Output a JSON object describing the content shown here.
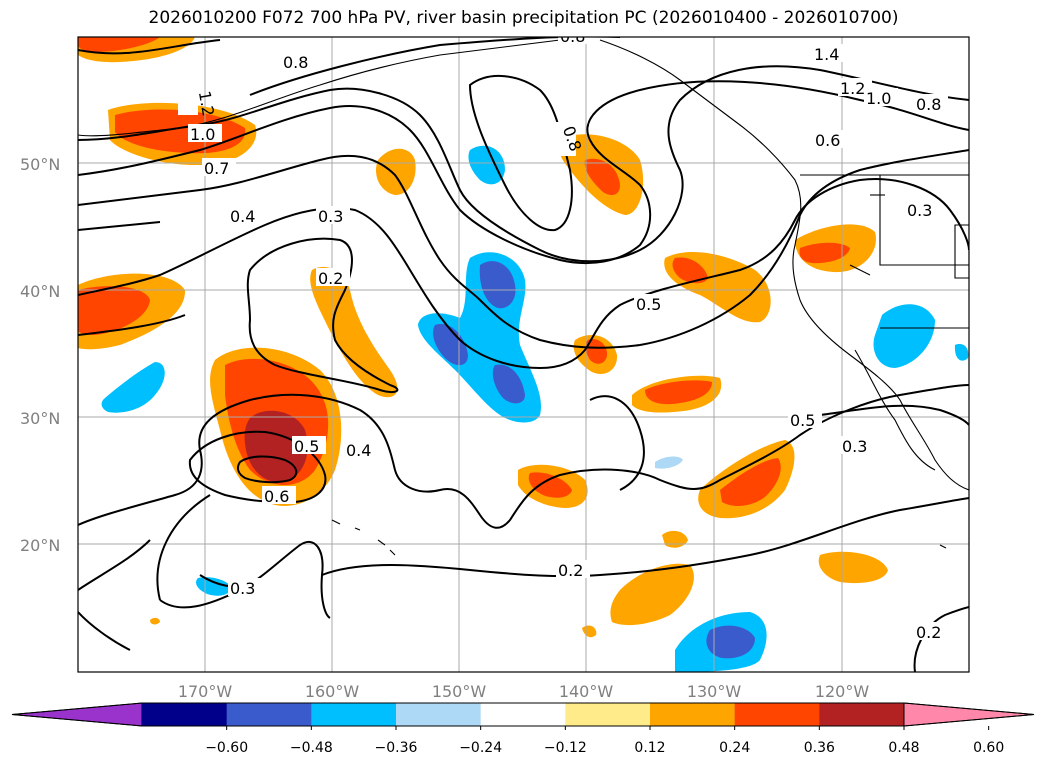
{
  "title": "2026010200 F072 700 hPa PV, river basin precipitation PC (2026010400 - 2026010700)",
  "lat_labels": [
    "50°N",
    "40°N",
    "30°N",
    "20°N"
  ],
  "lon_labels": [
    "170°W",
    "160°W",
    "150°W",
    "140°W",
    "130°W",
    "120°W"
  ],
  "contour_labels": [
    "0.8",
    "1.4",
    "1.2",
    "1.0",
    "0.8",
    "1.2",
    "1.0",
    "0.7",
    "0.8",
    "0.6",
    "0.3",
    "0.4",
    "0.3",
    "0.2",
    "0.5",
    "0.5",
    "0.4",
    "0.5",
    "0.3",
    "0.6",
    "0.2",
    "0.3",
    "0.2",
    "0.8"
  ],
  "colorbar": {
    "colors": [
      "#9933cc",
      "#00008b",
      "#3a5bcc",
      "#00bfff",
      "#add8f6",
      "#ffffff",
      "#ffeb8a",
      "#ffa500",
      "#ff4500",
      "#b22222",
      "#ff88aa"
    ],
    "tick_labels": [
      "−0.60",
      "−0.48",
      "−0.36",
      "−0.24",
      "−0.12",
      "0.12",
      "0.24",
      "0.36",
      "0.48",
      "0.60"
    ]
  }
}
